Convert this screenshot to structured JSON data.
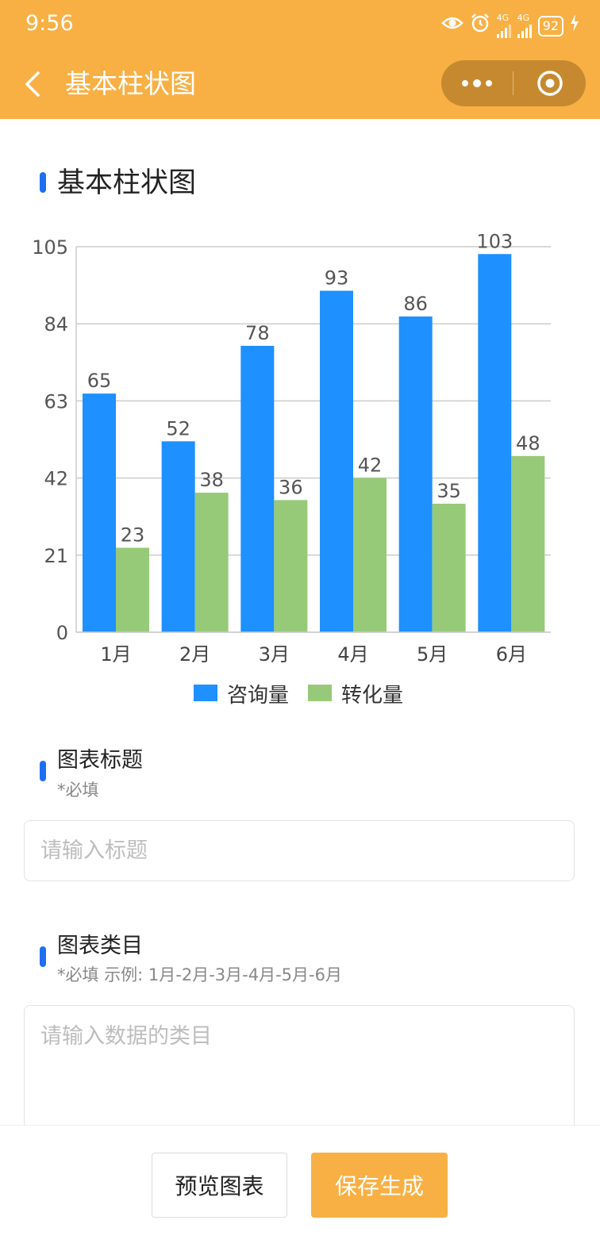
{
  "status_bar": {
    "time": "9:56",
    "network_label": "4G",
    "battery": "92",
    "icons": [
      "eye-icon",
      "alarm-icon",
      "signal-icon",
      "signal-icon",
      "battery-icon",
      "charging-icon"
    ]
  },
  "nav": {
    "title": "基本柱状图",
    "back_icon": "chevron-left-icon",
    "more_icon": "more-dots-icon",
    "close_icon": "target-circle-icon"
  },
  "chart_section": {
    "title": "基本柱状图"
  },
  "chart_data": {
    "type": "bar",
    "title": "",
    "categories": [
      "1月",
      "2月",
      "3月",
      "4月",
      "5月",
      "6月"
    ],
    "series": [
      {
        "name": "咨询量",
        "values": [
          65,
          52,
          78,
          93,
          86,
          103
        ],
        "color": "#1E90FF"
      },
      {
        "name": "转化量",
        "values": [
          23,
          38,
          36,
          42,
          35,
          48
        ],
        "color": "#97CA78"
      }
    ],
    "ylim": [
      0,
      105
    ],
    "yticks": [
      "0",
      "21",
      "42",
      "63",
      "84",
      "105"
    ],
    "grid": true,
    "legend": "bottom-center",
    "data_labels": true
  },
  "form": {
    "title_field": {
      "label": "图表标题",
      "hint": "*必填",
      "value": "",
      "placeholder": "请输入标题"
    },
    "category_field": {
      "label": "图表类目",
      "hint": "*必填 示例: 1月-2月-3月-4月-5月-6月",
      "value": "",
      "placeholder": "请输入数据的类目"
    }
  },
  "actions": {
    "preview_label": "预览图表",
    "save_label": "保存生成"
  },
  "colors": {
    "header_bg": "#F8B045",
    "accent_mark": "#1E6FF2",
    "save_button_bg": "#F8B045"
  }
}
